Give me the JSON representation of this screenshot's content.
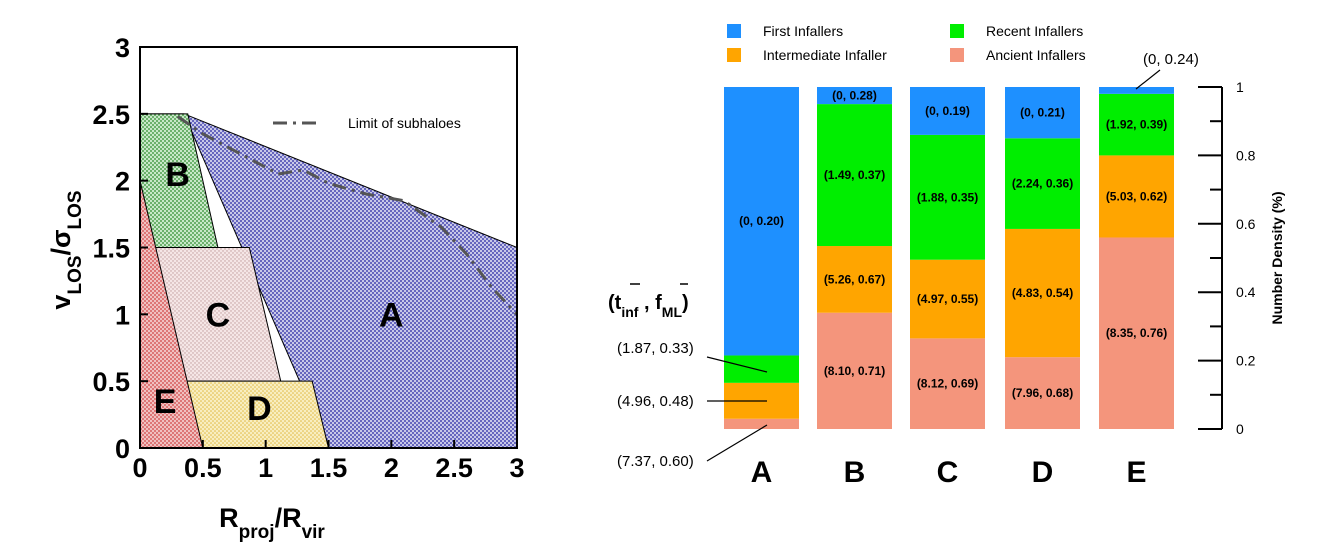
{
  "chart_data": [
    {
      "type": "region-diagram",
      "xlabel_main": "R",
      "xlabel_sub1": "proj",
      "xlabel_mid": "/R",
      "xlabel_sub2": "vir",
      "ylabel_main1": "v",
      "ylabel_sub1": "LOS",
      "ylabel_mid": "/σ",
      "ylabel_sub2": "LOS",
      "xlim": [
        0,
        3
      ],
      "ylim": [
        0,
        3
      ],
      "xticks": [
        "0",
        "0.5",
        "1",
        "1.5",
        "2",
        "2.5",
        "3"
      ],
      "yticks": [
        "0",
        "0.5",
        "1",
        "1.5",
        "2",
        "2.5",
        "3"
      ],
      "regions": [
        {
          "label": "A",
          "color": "#2020a0",
          "polygon": [
            [
              0,
              2.5
            ],
            [
              0.35,
              2.5
            ],
            [
              1.5,
              0
            ],
            [
              3,
              0
            ],
            [
              3,
              1.5
            ],
            [
              0.35,
              2.5
            ]
          ],
          "label_pos": [
            2,
            1
          ]
        },
        {
          "label": "B",
          "color": "#2a8a2a",
          "polygon": [
            [
              0,
              2.5
            ],
            [
              0.38,
              2.5
            ],
            [
              0.62,
              1.5
            ],
            [
              0,
              1.5
            ]
          ],
          "label_pos": [
            0.3,
            2.05
          ]
        },
        {
          "label": "C",
          "color": "#b08080",
          "polygon": [
            [
              0,
              1.5
            ],
            [
              0.87,
              1.5
            ],
            [
              1.12,
              0.5
            ],
            [
              0,
              0.5
            ]
          ],
          "label_pos": [
            0.62,
            1
          ]
        },
        {
          "label": "D",
          "color": "#e0c040",
          "polygon": [
            [
              0,
              0.5
            ],
            [
              1.37,
              0.5
            ],
            [
              1.5,
              0
            ],
            [
              0,
              0
            ]
          ],
          "label_pos": [
            0.95,
            0.3
          ]
        },
        {
          "label": "E",
          "color": "#d04040",
          "polygon": [
            [
              0,
              2
            ],
            [
              0.5,
              0
            ],
            [
              0,
              0
            ]
          ],
          "label_pos": [
            0.2,
            0.35
          ]
        }
      ],
      "limit_curve": {
        "name": "Limit of subhaloes",
        "x": [
          0.3,
          0.5,
          0.8,
          1.1,
          1.3,
          1.5,
          1.8,
          2.1,
          2.4,
          2.6,
          2.8,
          3.0
        ],
        "y": [
          2.48,
          2.35,
          2.2,
          2.05,
          2.08,
          1.98,
          1.9,
          1.85,
          1.65,
          1.45,
          1.2,
          1.0
        ]
      }
    },
    {
      "type": "bar",
      "stacked": true,
      "categories": [
        "A",
        "B",
        "C",
        "D",
        "E"
      ],
      "ylabel": "Number Density (%)",
      "ylim": [
        0,
        1
      ],
      "yticks": [
        "0",
        "0.2",
        "0.4",
        "0.6",
        "0.8",
        "1"
      ],
      "series": [
        {
          "name": "Ancient Infallers",
          "color": "#f4957c",
          "values": [
            0.03,
            0.34,
            0.265,
            0.21,
            0.56
          ],
          "labels": [
            "",
            "(8.10, 0.71)",
            "(8.12, 0.69)",
            "(7.96, 0.68)",
            "(8.35, 0.76)"
          ]
        },
        {
          "name": "Intermediate Infaller",
          "color": "#ffa500",
          "values": [
            0.105,
            0.195,
            0.23,
            0.375,
            0.24
          ],
          "labels": [
            "",
            "(5.26, 0.67)",
            "(4.97, 0.55)",
            "(4.83, 0.54)",
            "(5.03, 0.62)"
          ]
        },
        {
          "name": "Recent Infallers",
          "color": "#00ee00",
          "values": [
            0.08,
            0.415,
            0.365,
            0.265,
            0.18
          ],
          "labels": [
            "",
            "(1.49, 0.37)",
            "(1.88, 0.35)",
            "(2.24, 0.36)",
            "(1.92, 0.39)"
          ]
        },
        {
          "name": "First Infallers",
          "color": "#1e90ff",
          "values": [
            0.785,
            0.05,
            0.14,
            0.15,
            0.02
          ],
          "labels": [
            "(0, 0.20)",
            "(0, 0.28)",
            "(0, 0.19)",
            "(0, 0.21)",
            ""
          ]
        }
      ],
      "legend_order": [
        "First Infallers",
        "Recent Infallers",
        "Intermediate Infaller",
        "Ancient Infallers"
      ],
      "annotation_header": {
        "p1": "(",
        "t": "t",
        "tsub": "inf",
        "sep": " , ",
        "f": "f",
        "fsub": "ML",
        "p2": ")"
      },
      "callouts": [
        {
          "text": "(1.87, 0.33)"
        },
        {
          "text": "(4.96, 0.48)"
        },
        {
          "text": "(7.37, 0.60)"
        },
        {
          "text": "(0, 0.24)"
        }
      ]
    }
  ]
}
